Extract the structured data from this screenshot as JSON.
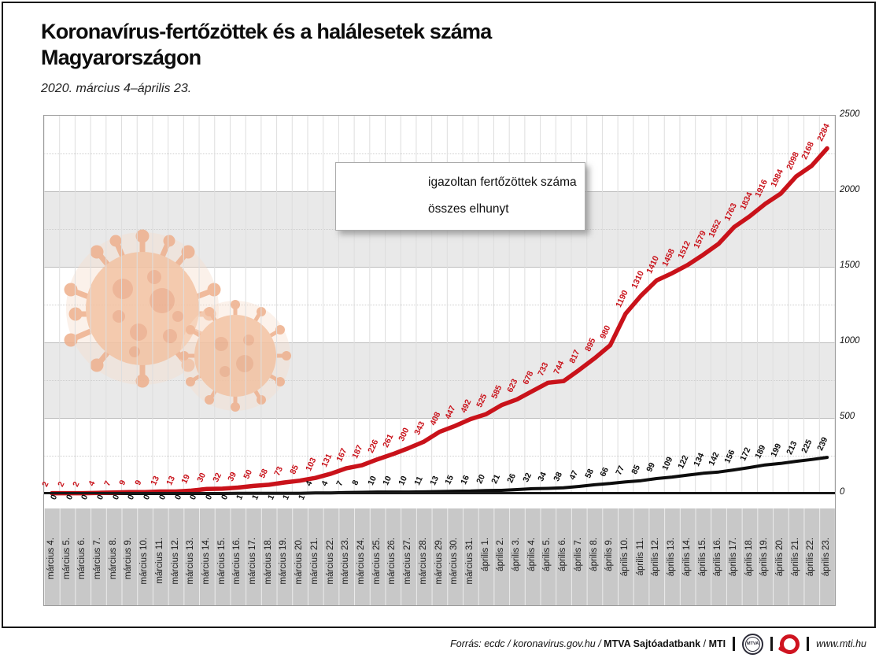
{
  "header": {
    "title_line1": "Koronavírus-fertőzöttek és a halálesetek száma",
    "title_line2": "Magyarországon",
    "subtitle": "2020. március 4–április 23."
  },
  "legend": {
    "infected_label": "igazoltan fertőzöttek száma",
    "deaths_label": "összes elhunyt"
  },
  "footer": {
    "source_italic": "Forrás: ecdc / koronavirus.gov.hu /",
    "source_bold_1": "MTVA Sajtóadatbank",
    "source_separator": "/",
    "source_bold_2": "MTI",
    "mtva_logo_text": "MTVA",
    "website": "www.mti.hu"
  },
  "colors": {
    "infected_line": "#c9121a",
    "deaths_line": "#0d0d0d",
    "band_gray": "#e9e9e9",
    "band_white": "#ffffff",
    "date_band": "#c8c8c8",
    "grid_vertical": "#dedede",
    "watermark": "#f3c3a3"
  },
  "chart_data": {
    "type": "line",
    "title": "Koronavírus-fertőzöttek és a halálesetek száma Magyarországon",
    "subtitle": "2020. március 4–április 23.",
    "ylim": [
      0,
      2500
    ],
    "yticks": [
      0,
      500,
      1000,
      1500,
      2000,
      2500
    ],
    "grid": "horizontal-bands+vertical-lines",
    "legend_position": "top-center",
    "value_labels": true,
    "x_tick_rotation": 90,
    "categories": [
      "március 4.",
      "március 5.",
      "március 6.",
      "március 7.",
      "március 8.",
      "március 9.",
      "március 10.",
      "március 11.",
      "március 12.",
      "március 13.",
      "március 14.",
      "március 15.",
      "március 16.",
      "március 17.",
      "március 18.",
      "március 19.",
      "március 20.",
      "március 21.",
      "március 22.",
      "március 23.",
      "március 24.",
      "március 25.",
      "március 26.",
      "március 27.",
      "március 28.",
      "március 29.",
      "március 30.",
      "március 31.",
      "április 1.",
      "április 2.",
      "április 3.",
      "április 4.",
      "április 5.",
      "április 6.",
      "április 7.",
      "április 8.",
      "április 9.",
      "április 10.",
      "április 11.",
      "április 12.",
      "április 13.",
      "április 14.",
      "április 15.",
      "április 16.",
      "április 17.",
      "április 18.",
      "április 19.",
      "április 20.",
      "április 21.",
      "április 22.",
      "április 23."
    ],
    "series": [
      {
        "name": "igazoltan fertőzöttek száma",
        "color": "#c9121a",
        "values": [
          2,
          2,
          2,
          4,
          7,
          9,
          9,
          13,
          13,
          19,
          30,
          32,
          39,
          50,
          58,
          73,
          85,
          103,
          131,
          167,
          187,
          226,
          261,
          300,
          343,
          408,
          447,
          492,
          525,
          585,
          623,
          678,
          733,
          744,
          817,
          895,
          980,
          1190,
          1310,
          1410,
          1458,
          1512,
          1579,
          1652,
          1763,
          1834,
          1916,
          1984,
          2098,
          2168,
          2284
        ]
      },
      {
        "name": "összes elhunyt",
        "color": "#0d0d0d",
        "values": [
          0,
          0,
          0,
          0,
          0,
          0,
          0,
          0,
          0,
          0,
          0,
          0,
          1,
          1,
          1,
          1,
          1,
          4,
          4,
          7,
          8,
          10,
          10,
          10,
          11,
          13,
          15,
          16,
          20,
          21,
          26,
          32,
          34,
          38,
          47,
          58,
          66,
          77,
          85,
          99,
          109,
          122,
          134,
          142,
          156,
          172,
          189,
          199,
          213,
          225,
          239
        ]
      }
    ]
  }
}
